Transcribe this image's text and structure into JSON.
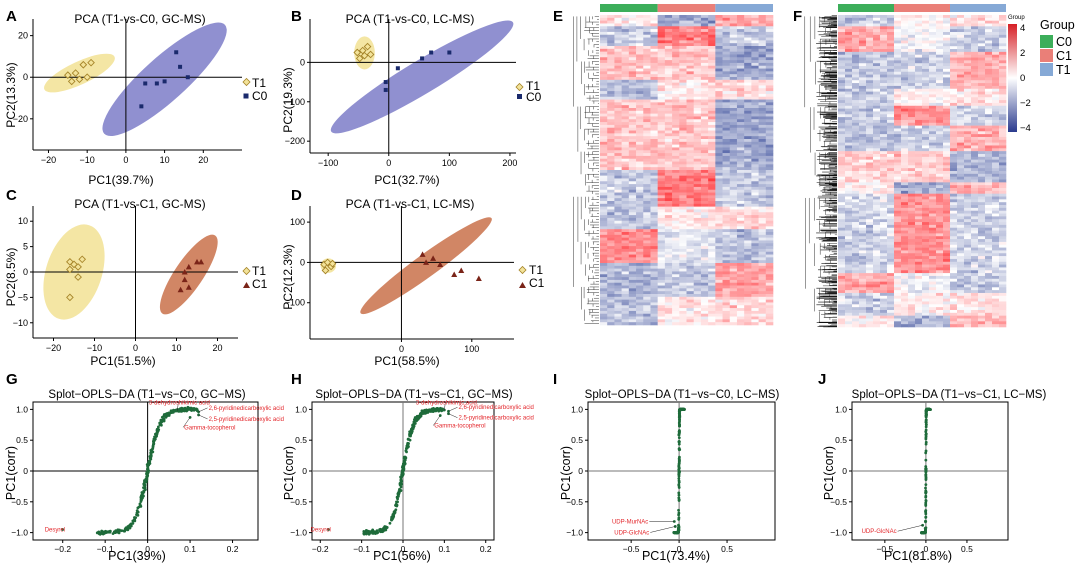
{
  "colors": {
    "T1": "#e8c65a",
    "T1_fill": "#f3e39a",
    "T1_stroke": "#a6852a",
    "C0": "#1a2a6c",
    "C0_fill": "#7c7cc8",
    "C1": "#7a2418",
    "C1_fill": "#c9714a",
    "splot": "#1e6b3a",
    "annot": "#e3262b",
    "grp_C0": "#3cae5a",
    "grp_C1": "#ea7f78",
    "grp_T1": "#86a9d6",
    "hm_high": "#d61f26",
    "hm_mid": "#ffffff",
    "hm_low": "#2a3a8e"
  },
  "panels": {
    "A": {
      "letter": "A",
      "title": "PCA (T1-vs-C0, GC-MS)",
      "xlabel": "PC1(39.7%)",
      "ylabel": "PC2(13.3%)",
      "legend": [
        "T1",
        "C0"
      ]
    },
    "B": {
      "letter": "B",
      "title": "PCA (T1-vs-C0, LC-MS)",
      "xlabel": "PC1(32.7%)",
      "ylabel": "PC2(19.3%)",
      "legend": [
        "T1",
        "C0"
      ]
    },
    "C": {
      "letter": "C",
      "title": "PCA (T1-vs-C1, GC-MS)",
      "xlabel": "PC1(51.5%)",
      "ylabel": "PC2(8.5%)",
      "legend": [
        "T1",
        "C1"
      ]
    },
    "D": {
      "letter": "D",
      "title": "PCA (T1-vs-C1, LC-MS)",
      "xlabel": "PC1(58.5%)",
      "ylabel": "PC2(12.3%)",
      "legend": [
        "T1",
        "C1"
      ]
    },
    "E": {
      "letter": "E"
    },
    "F": {
      "letter": "F",
      "legend_title": "Group",
      "groups": [
        "C0",
        "C1",
        "T1"
      ],
      "scale_ticks": [
        "4",
        "2",
        "0",
        "−2",
        "−4"
      ],
      "scale_label": "Group"
    },
    "G": {
      "letter": "G",
      "title": "Splot−OPLS−DA (T1−vs−C0, GC−MS)",
      "xlabel": "PC1(39%)",
      "ylabel": "PC1(corr)"
    },
    "H": {
      "letter": "H",
      "title": "Splot−OPLS−DA (T1−vs−C1, GC−MS)",
      "xlabel": "PC1(56%)",
      "ylabel": "PC1(corr)"
    },
    "I": {
      "letter": "I",
      "title": "Splot−OPLS−DA (T1−vs−C0, LC−MS)",
      "xlabel": "PC1(73.4%)",
      "ylabel": "PC1(corr)"
    },
    "J": {
      "letter": "J",
      "title": "Splot−OPLS−DA (T1−vs−C1, LC−MS)",
      "xlabel": "PC1(81.8%)",
      "ylabel": "PC1(corr)"
    }
  },
  "chart_data": [
    {
      "id": "A",
      "type": "scatter",
      "title": "PCA (T1-vs-C0, GC-MS)",
      "xlabel": "PC1(39.7%)",
      "ylabel": "PC2(13.3%)",
      "xlim": [
        -24,
        30
      ],
      "ylim": [
        -35,
        28
      ],
      "xticks": [
        -20,
        -10,
        0,
        10,
        20
      ],
      "yticks": [
        -20,
        0,
        20
      ],
      "series": [
        {
          "name": "T1",
          "marker": "diamond",
          "points": [
            [
              -13,
              2
            ],
            [
              -11,
              6
            ],
            [
              -9,
              7
            ],
            [
              -12,
              -1
            ],
            [
              -15,
              1
            ],
            [
              -10,
              0
            ],
            [
              -14,
              -2
            ]
          ],
          "ellipse": {
            "cx": -12,
            "cy": 2,
            "rx": 10,
            "ry": 5.5,
            "angle": 25
          }
        },
        {
          "name": "C0",
          "marker": "square",
          "points": [
            [
              13,
              12
            ],
            [
              14,
              5
            ],
            [
              8,
              -3
            ],
            [
              10,
              -2
            ],
            [
              5,
              -3
            ],
            [
              16,
              0
            ],
            [
              4,
              -14
            ]
          ],
          "ellipse": {
            "cx": 10,
            "cy": -1,
            "rx": 21,
            "ry": 10.5,
            "angle": 42
          }
        }
      ]
    },
    {
      "id": "B",
      "type": "scatter",
      "title": "PCA (T1-vs-C0, LC-MS)",
      "xlabel": "PC1(32.7%)",
      "ylabel": "PC2(19.3%)",
      "xlim": [
        -130,
        210
      ],
      "ylim": [
        -230,
        110
      ],
      "xticks": [
        -100,
        0,
        100,
        200
      ],
      "yticks": [
        -200,
        -100,
        0
      ],
      "series": [
        {
          "name": "T1",
          "marker": "diamond",
          "points": [
            [
              -43,
              30
            ],
            [
              -35,
              40
            ],
            [
              -52,
              25
            ],
            [
              -40,
              17
            ],
            [
              -30,
              20
            ],
            [
              -48,
              10
            ]
          ],
          "ellipse": {
            "cx": -40,
            "cy": 24,
            "rx": 17,
            "ry": 42,
            "angle": 0
          }
        },
        {
          "name": "C0",
          "marker": "square",
          "points": [
            [
              70,
              25
            ],
            [
              100,
              25
            ],
            [
              55,
              10
            ],
            [
              15,
              -15
            ],
            [
              -5,
              -50
            ],
            [
              -5,
              -70
            ]
          ],
          "ellipse": {
            "cx": 55,
            "cy": -37,
            "rx": 175,
            "ry": 42,
            "angle": 31
          }
        }
      ]
    },
    {
      "id": "C",
      "type": "scatter",
      "title": "PCA (T1-vs-C1, GC-MS)",
      "xlabel": "PC1(51.5%)",
      "ylabel": "PC2(8.5%)",
      "xlim": [
        -25,
        25
      ],
      "ylim": [
        -13,
        13
      ],
      "xticks": [
        -20,
        -10,
        0,
        10,
        20
      ],
      "yticks": [
        -10,
        -5,
        0,
        5,
        10
      ],
      "series": [
        {
          "name": "T1",
          "marker": "diamond",
          "points": [
            [
              -16,
              2
            ],
            [
              -15,
              1.5
            ],
            [
              -14,
              1
            ],
            [
              -13,
              2.5
            ],
            [
              -16,
              0.5
            ],
            [
              -14,
              -1
            ],
            [
              -16,
              -5
            ]
          ],
          "ellipse": {
            "cx": -15,
            "cy": 0,
            "rx": 12,
            "ry": 5.5,
            "angle": 72
          }
        },
        {
          "name": "C1",
          "marker": "triangle",
          "points": [
            [
              15,
              2
            ],
            [
              16,
              2
            ],
            [
              13,
              1
            ],
            [
              12,
              0
            ],
            [
              12,
              -1.5
            ],
            [
              13,
              -3
            ],
            [
              11,
              -3.5
            ]
          ],
          "ellipse": {
            "cx": 13,
            "cy": -0.5,
            "rx": 11.5,
            "ry": 2.8,
            "angle": 56
          }
        }
      ]
    },
    {
      "id": "D",
      "type": "scatter",
      "title": "PCA (T1-vs-C1, LC-MS)",
      "xlabel": "PC1(58.5%)",
      "ylabel": "PC2(12.3%)",
      "xlim": [
        -130,
        160
      ],
      "ylim": [
        -190,
        140
      ],
      "xticks": [
        0,
        100
      ],
      "yticks": [
        -100,
        0,
        100
      ],
      "series": [
        {
          "name": "T1",
          "marker": "diamond",
          "points": [
            [
              -110,
              -5
            ],
            [
              -105,
              0
            ],
            [
              -100,
              -10
            ],
            [
              -108,
              -20
            ],
            [
              -98,
              -3
            ]
          ],
          "ellipse": {
            "cx": -104,
            "cy": -8,
            "rx": 11,
            "ry": 18,
            "angle": 0
          }
        },
        {
          "name": "C1",
          "marker": "triangle",
          "points": [
            [
              30,
              20
            ],
            [
              45,
              10
            ],
            [
              35,
              0
            ],
            [
              55,
              -5
            ],
            [
              75,
              -30
            ],
            [
              110,
              -40
            ],
            [
              85,
              -20
            ]
          ],
          "ellipse": {
            "cx": 35,
            "cy": -8,
            "rx": 115,
            "ry": 28,
            "angle": 36
          }
        }
      ]
    },
    {
      "id": "E",
      "type": "heatmap",
      "groups": [
        "C0",
        "C1",
        "T1"
      ],
      "color_range": [
        -4,
        4
      ]
    },
    {
      "id": "F",
      "type": "heatmap",
      "groups": [
        "C0",
        "C1",
        "T1"
      ],
      "color_range": [
        -4,
        4
      ],
      "legend_ticks": [
        4,
        2,
        0,
        -2,
        -4
      ]
    },
    {
      "id": "G",
      "type": "scatter",
      "title": "Splot-OPLS-DA (T1-vs-C0, GC-MS)",
      "xlabel": "PC1(39%)",
      "ylabel": "PC1(corr)",
      "xlim": [
        -0.27,
        0.26
      ],
      "ylim": [
        -1.12,
        1.12
      ],
      "xticks": [
        -0.2,
        -0.1,
        0.0,
        0.1,
        0.2
      ],
      "yticks": [
        -1.0,
        -0.5,
        0.0,
        0.5,
        1.0
      ],
      "s_curve": {
        "xmin": -0.12,
        "xmax": 0.12,
        "k": 34,
        "n": 320
      },
      "annotations": [
        {
          "label": "3-dehydroshikimic acid",
          "x": 0.07,
          "y": 0.98
        },
        {
          "label": "2,6-pyridinedicarboxylic acid",
          "x": 0.12,
          "y": 0.96
        },
        {
          "label": "2,5-pyridinedicarboxylic acid",
          "x": 0.12,
          "y": 0.91
        },
        {
          "label": "Gamma-tocopherol",
          "x": 0.1,
          "y": 0.87
        },
        {
          "label": "Desyrel",
          "x": -0.2,
          "y": -0.95
        }
      ]
    },
    {
      "id": "H",
      "type": "scatter",
      "title": "Splot-OPLS-DA (T1-vs-C1, GC-MS)",
      "xlabel": "PC1(56%)",
      "ylabel": "PC1(corr)",
      "xlim": [
        -0.22,
        0.22
      ],
      "ylim": [
        -1.12,
        1.12
      ],
      "xticks": [
        -0.2,
        -0.1,
        0.0,
        0.1,
        0.2
      ],
      "yticks": [
        -1.0,
        -0.5,
        0.0,
        0.5,
        1.0
      ],
      "s_curve": {
        "xmin": -0.1,
        "xmax": 0.1,
        "k": 38,
        "n": 320
      },
      "annotations": [
        {
          "label": "3-dehydroshikimic acid",
          "x": 0.1,
          "y": 0.99
        },
        {
          "label": "2,6-pyridinedicarboxylic acid",
          "x": 0.11,
          "y": 0.97
        },
        {
          "label": "2,5-pyridinedicarboxylic acid",
          "x": 0.11,
          "y": 0.93
        },
        {
          "label": "Gamma-tocopherol",
          "x": 0.09,
          "y": 0.9
        },
        {
          "label": "Desyrel",
          "x": -0.18,
          "y": -0.95
        }
      ]
    },
    {
      "id": "I",
      "type": "scatter",
      "title": "Splot-OPLS-DA (T1-vs-C0, LC-MS)",
      "xlabel": "PC1(73.4%)",
      "ylabel": "PC1(corr)",
      "xlim": [
        -0.95,
        1.0
      ],
      "ylim": [
        -1.12,
        1.12
      ],
      "xticks": [
        -0.5,
        0.0,
        0.5
      ],
      "yticks": [
        -1.0,
        -0.5,
        0.0,
        0.5,
        1.0
      ],
      "s_curve": {
        "xmin": -0.06,
        "xmax": 0.06,
        "k": 320,
        "n": 380
      },
      "annotations": [
        {
          "label": "UDP-MurNAc",
          "x": -0.05,
          "y": -0.82
        },
        {
          "label": "UDP-GlcNAc",
          "x": -0.04,
          "y": -0.9
        }
      ]
    },
    {
      "id": "J",
      "type": "scatter",
      "title": "Splot-OPLS-DA (T1-vs-C1, LC-MS)",
      "xlabel": "PC1(81.8%)",
      "ylabel": "PC1(corr)",
      "xlim": [
        -0.9,
        1.0
      ],
      "ylim": [
        -1.12,
        1.12
      ],
      "xticks": [
        -0.5,
        0.0,
        0.5
      ],
      "yticks": [
        -1.0,
        -0.5,
        0.0,
        0.5,
        1.0
      ],
      "s_curve": {
        "xmin": -0.06,
        "xmax": 0.06,
        "k": 320,
        "n": 380
      },
      "annotations": [
        {
          "label": "UDP-GlcNAc",
          "x": -0.04,
          "y": -0.88
        }
      ]
    }
  ]
}
